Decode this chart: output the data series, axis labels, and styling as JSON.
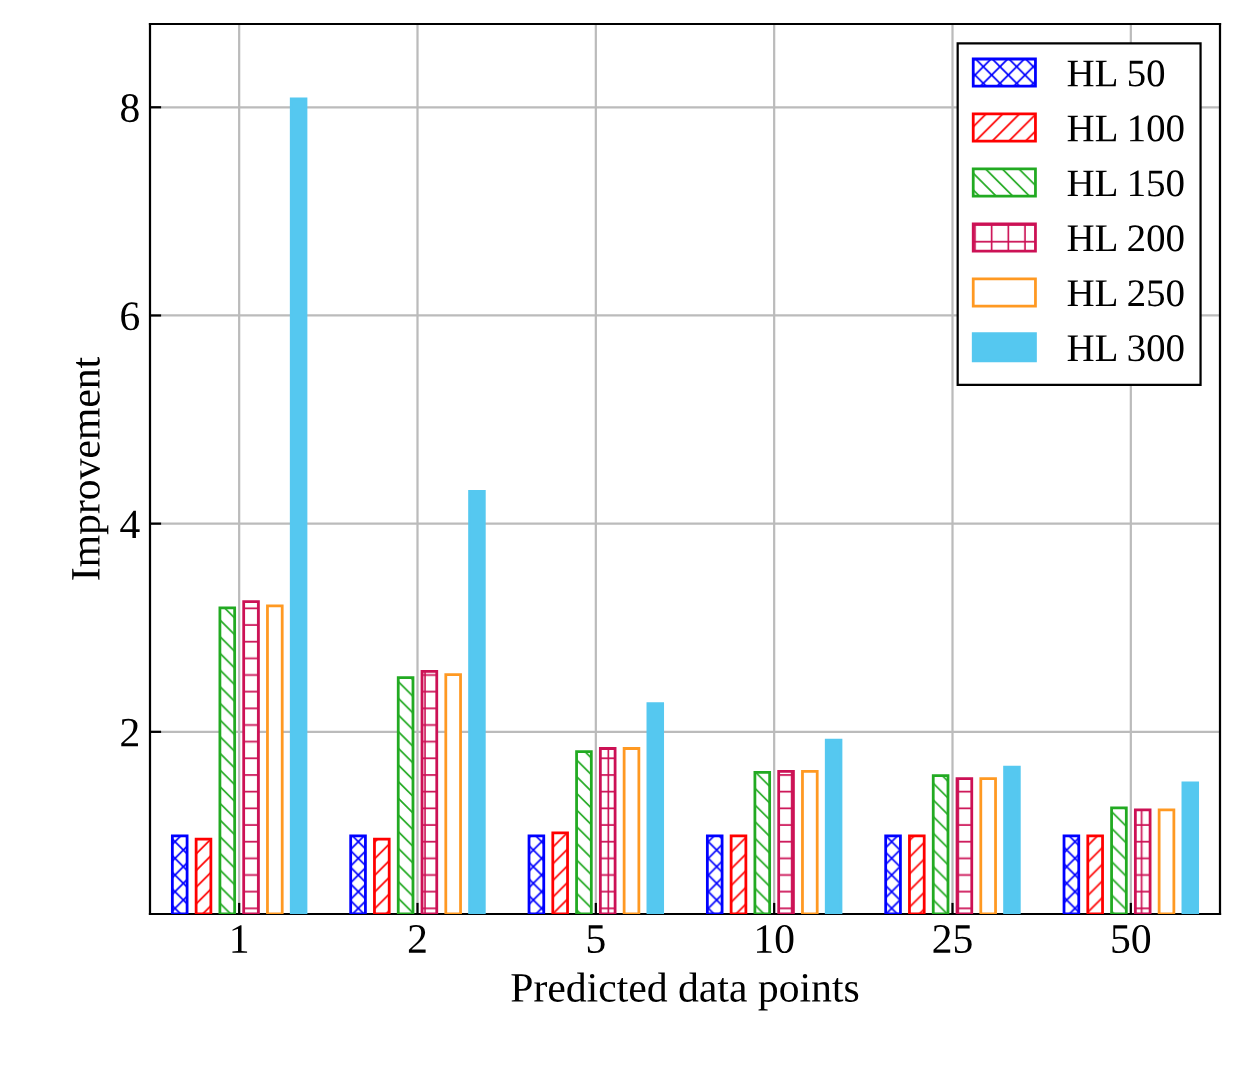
{
  "chart_data": {
    "type": "bar",
    "xlabel": "Predicted data points",
    "ylabel": "Improvement",
    "categories": [
      "1",
      "2",
      "5",
      "10",
      "25",
      "50"
    ],
    "series": [
      {
        "name": "HL 50",
        "color": "#0000ff",
        "values": [
          1.0,
          1.0,
          1.0,
          1.0,
          1.0,
          1.0
        ]
      },
      {
        "name": "HL 100",
        "color": "#ff0000",
        "values": [
          0.97,
          0.97,
          1.03,
          1.0,
          1.0,
          1.0
        ]
      },
      {
        "name": "HL 150",
        "color": "#22aa22",
        "values": [
          3.19,
          2.52,
          1.81,
          1.61,
          1.58,
          1.27
        ]
      },
      {
        "name": "HL 200",
        "color": "#cc1155",
        "values": [
          3.25,
          2.58,
          1.84,
          1.62,
          1.55,
          1.25
        ]
      },
      {
        "name": "HL 250",
        "color": "#ff9922",
        "values": [
          3.21,
          2.55,
          1.84,
          1.62,
          1.55,
          1.25
        ]
      },
      {
        "name": "HL 300",
        "color": "#55c8f0",
        "values": [
          8.08,
          4.31,
          2.27,
          1.92,
          1.66,
          1.51
        ]
      }
    ],
    "ylim": [
      0.25,
      8.8
    ],
    "yticks": [
      2,
      4,
      6,
      8
    ],
    "grid": true,
    "legend": "top right"
  }
}
